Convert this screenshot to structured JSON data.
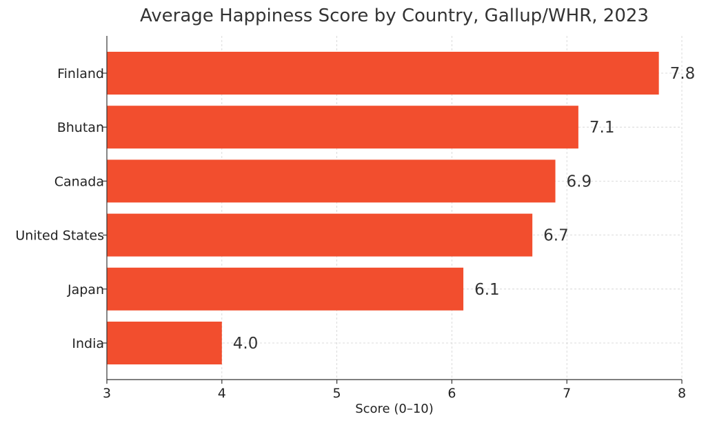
{
  "chart_data": {
    "type": "bar",
    "orientation": "horizontal",
    "title": "Average Happiness Score by Country, Gallup/WHR, 2023",
    "xlabel": "Score (0–10)",
    "ylabel": "",
    "categories": [
      "Finland",
      "Bhutan",
      "Canada",
      "United States",
      "Japan",
      "India"
    ],
    "values": [
      7.8,
      7.1,
      6.9,
      6.7,
      6.1,
      4.0
    ],
    "value_labels": [
      "7.8",
      "7.1",
      "6.9",
      "6.7",
      "6.1",
      "4.0"
    ],
    "xlim": [
      3,
      8
    ],
    "xticks": [
      3,
      4,
      5,
      6,
      7,
      8
    ],
    "grid": true,
    "bar_color": "#f24e2e"
  }
}
